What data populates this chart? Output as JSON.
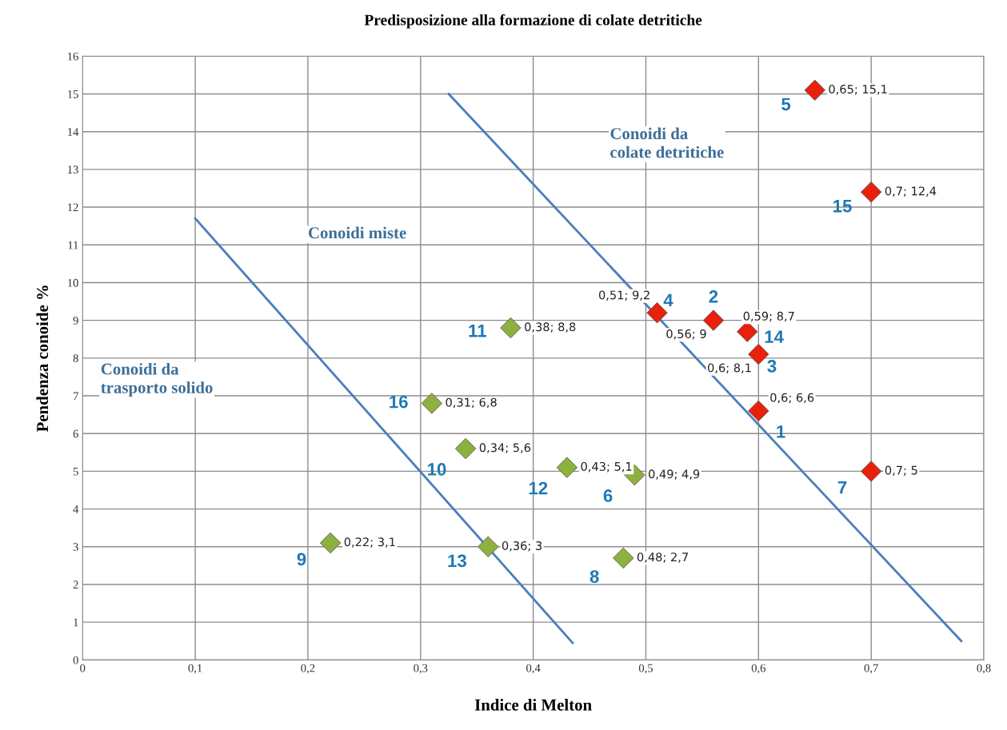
{
  "chart_data": {
    "type": "scatter",
    "title": "Predisposizione alla formazione di colate detritiche",
    "xlabel": "Indice di Melton",
    "ylabel": "Pendenza conoide %",
    "xlim": [
      0,
      0.8
    ],
    "ylim": [
      0,
      16
    ],
    "xticks": [
      0,
      {
        "value": 0.1,
        "label": "0,1"
      },
      {
        "value": 0.2,
        "label": "0,2"
      },
      {
        "value": 0.3,
        "label": "0,3"
      },
      {
        "value": 0.4,
        "label": "0,4"
      },
      {
        "value": 0.5,
        "label": "0,5"
      },
      {
        "value": 0.6,
        "label": "0,6"
      },
      {
        "value": 0.7,
        "label": "0,7"
      },
      {
        "value": 0.8,
        "label": "0,8"
      }
    ],
    "yticks": [
      0,
      1,
      2,
      3,
      4,
      5,
      6,
      7,
      8,
      9,
      10,
      11,
      12,
      13,
      14,
      15,
      16
    ],
    "grid": true,
    "marker": "diamond",
    "series": [
      {
        "color": "#8db13e",
        "x": [
          0.38,
          0.31,
          0.34,
          0.43,
          0.49,
          0.22,
          0.36,
          0.48
        ],
        "values": [
          8.8,
          6.8,
          5.6,
          5.1,
          4.9,
          3.1,
          3,
          2.7
        ],
        "value_labels": [
          "0,38; 8,8",
          "0,31; 6,8",
          "0,34; 5,6",
          "0,43; 5,1",
          "0,49; 4,9",
          "0,22; 3,1",
          "0,36; 3",
          "0,48; 2,7"
        ]
      },
      {
        "color": "#e8200c",
        "x": [
          0.65,
          0.7,
          0.51,
          0.56,
          0.59,
          0.6,
          0.6,
          0.7
        ],
        "values": [
          15.1,
          12.4,
          9.2,
          9,
          8.7,
          8.1,
          6.6,
          5
        ],
        "value_labels": [
          "0,65; 15,1",
          "0,7; 12,4",
          "0,51; 9,2",
          "0,56; 9",
          "0,59; 8,7",
          "0,6; 8,1",
          "0,6; 6,6",
          "0,7; 5"
        ]
      },
      {
        "type": "line",
        "marker": "none",
        "color": "#4a7ebb",
        "x": [
          0.1,
          0.435
        ],
        "values": [
          11.7,
          0.45
        ]
      },
      {
        "type": "line",
        "marker": "none",
        "color": "#4a7ebb",
        "x": [
          0.325,
          0.78
        ],
        "values": [
          15,
          0.5
        ]
      }
    ],
    "annotations": [
      {
        "text": "11",
        "x": 0.38,
        "y": 8.8
      },
      {
        "text": "16",
        "x": 0.31,
        "y": 6.8
      },
      {
        "text": "10",
        "x": 0.34,
        "y": 5.6
      },
      {
        "text": "12",
        "x": 0.43,
        "y": 5.1
      },
      {
        "text": "6",
        "x": 0.49,
        "y": 4.9
      },
      {
        "text": "9",
        "x": 0.22,
        "y": 3.1
      },
      {
        "text": "13",
        "x": 0.36,
        "y": 3
      },
      {
        "text": "8",
        "x": 0.48,
        "y": 2.7
      },
      {
        "text": "5",
        "x": 0.65,
        "y": 15.1
      },
      {
        "text": "15",
        "x": 0.7,
        "y": 12.4
      },
      {
        "text": "4",
        "x": 0.51,
        "y": 9.2
      },
      {
        "text": "2",
        "x": 0.56,
        "y": 9
      },
      {
        "text": "14",
        "x": 0.59,
        "y": 8.7
      },
      {
        "text": "3",
        "x": 0.6,
        "y": 8.1
      },
      {
        "text": "1",
        "x": 0.6,
        "y": 6.6
      },
      {
        "text": "7",
        "x": 0.7,
        "y": 5
      },
      "Conoidi da\ncolate detritiche",
      "Conoidi miste",
      "Conoidi da\ntrasporto solido"
    ]
  }
}
